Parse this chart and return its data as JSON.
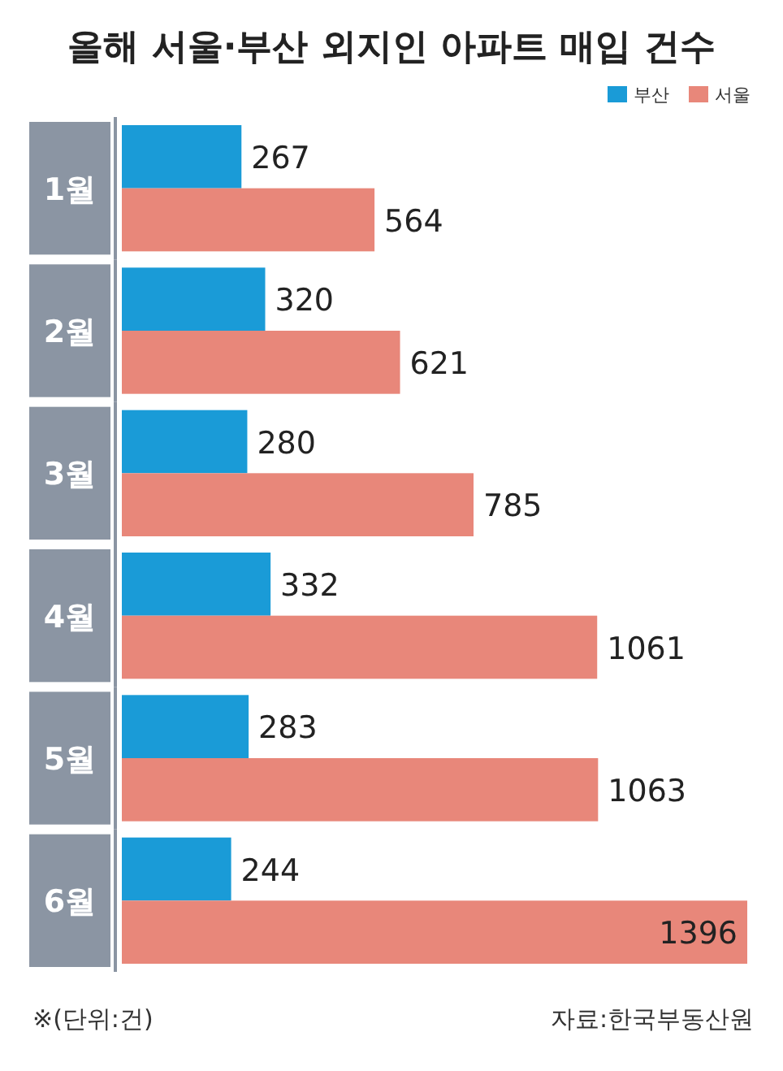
{
  "chart_data": {
    "type": "bar",
    "orientation": "horizontal",
    "title": "올해 서울·부산 외지인 아파트 매입 건수",
    "categories": [
      "1월",
      "2월",
      "3월",
      "4월",
      "5월",
      "6월"
    ],
    "series": [
      {
        "name": "부산",
        "color": "#1a9bd7",
        "values": [
          267,
          320,
          280,
          332,
          283,
          244
        ]
      },
      {
        "name": "서울",
        "color": "#e8877a",
        "values": [
          564,
          621,
          785,
          1061,
          1063,
          1396
        ]
      }
    ],
    "data_labels": true,
    "legend": "top right",
    "grid": false,
    "annotations": [
      "※(단위:건)",
      "자료:한국부동산원"
    ]
  }
}
